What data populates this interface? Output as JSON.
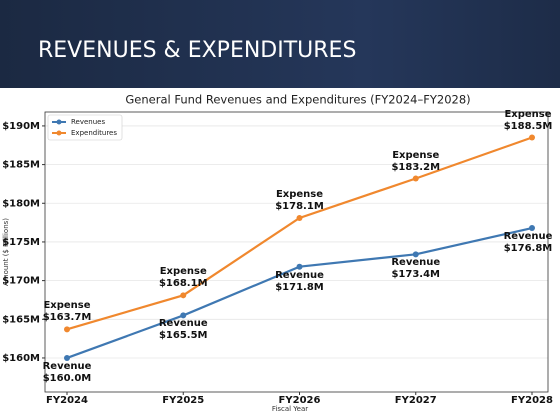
{
  "header": {
    "title": "REVENUES & EXPENDITURES"
  },
  "chart_data": {
    "type": "line",
    "title": "General Fund Revenues and Expenditures (FY2024–FY2028)",
    "x_label": "Fiscal Year",
    "y_label": "Amount ($ Millions)",
    "categories": [
      "FY2024",
      "FY2025",
      "FY2026",
      "FY2027",
      "FY2028"
    ],
    "series": [
      {
        "name": "Revenues",
        "color": "#3f78b2",
        "values": [
          160.0,
          165.5,
          171.8,
          173.4,
          176.8
        ],
        "value_labels": [
          "Revenue\n$160.0M",
          "Revenue\n$165.5M",
          "Revenue\n$171.8M",
          "Revenue\n$173.4M",
          "Revenue\n$176.8M"
        ]
      },
      {
        "name": "Expenditures",
        "color": "#f0882e",
        "values": [
          163.7,
          168.1,
          178.1,
          183.2,
          188.5
        ],
        "value_labels": [
          "Expense\n$163.7M",
          "Expense\n$168.1M",
          "Expense\n$178.1M",
          "Expense\n$183.2M",
          "Expense\n$188.5M"
        ]
      }
    ],
    "ylim": [
      155.6,
      191.8
    ],
    "yticks": [
      {
        "value": 160,
        "label": "$160M"
      },
      {
        "value": 165,
        "label": "$165M"
      },
      {
        "value": 170,
        "label": "$170M"
      },
      {
        "value": 175,
        "label": "$175M"
      },
      {
        "value": 180,
        "label": "$180M"
      },
      {
        "value": 185,
        "label": "$185M"
      },
      {
        "value": 190,
        "label": "$190M"
      }
    ],
    "grid": true,
    "legend": "upper left"
  }
}
